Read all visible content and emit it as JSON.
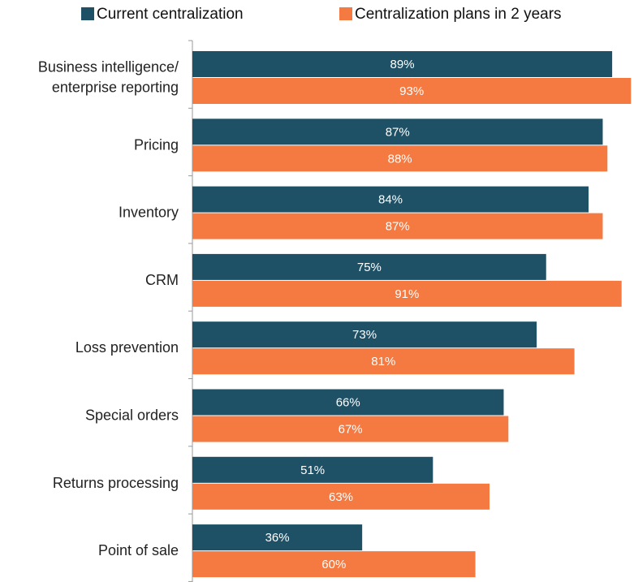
{
  "chart_data": {
    "type": "bar",
    "orientation": "horizontal",
    "categories": [
      "Business intelligence/\nenterprise reporting",
      "Pricing",
      "Inventory",
      "CRM",
      "Loss prevention",
      "Special orders",
      "Returns processing",
      "Point of sale"
    ],
    "series": [
      {
        "name": "Current centralization",
        "color": "#1f5166",
        "values": [
          89,
          87,
          84,
          75,
          73,
          66,
          51,
          36
        ],
        "value_labels": [
          "89%",
          "87%",
          "84%",
          "75%",
          "73%",
          "66%",
          "51%",
          "36%"
        ]
      },
      {
        "name": "Centralization plans in 2 years",
        "color": "#f47a42",
        "values": [
          93,
          88,
          87,
          91,
          81,
          67,
          63,
          60
        ],
        "value_labels": [
          "93%",
          "88%",
          "87%",
          "91%",
          "81%",
          "67%",
          "63%",
          "60%"
        ]
      }
    ],
    "legend": "top"
  }
}
